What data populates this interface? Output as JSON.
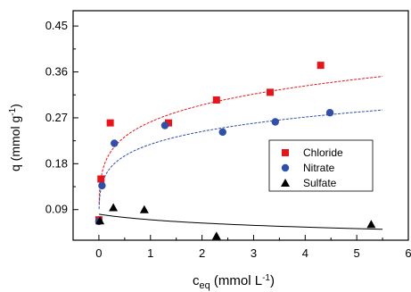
{
  "chart_data": {
    "type": "scatter",
    "title": "",
    "xlabel": {
      "main": "c",
      "sub": "eq",
      "rest_before": " (mmol L",
      "sup": "-1",
      "rest_after": ")"
    },
    "ylabel": {
      "main": "q (mmol g",
      "sup": "-1",
      "rest_after": ")"
    },
    "xlim": [
      -0.5,
      6
    ],
    "ylim": [
      0.03,
      0.48
    ],
    "xticks": [
      0,
      1,
      2,
      3,
      4,
      5,
      6
    ],
    "xtick_labels": [
      "0",
      "1",
      "2",
      "3",
      "4",
      "5",
      "6"
    ],
    "yticks": [
      0.09,
      0.18,
      0.27,
      0.36,
      0.45
    ],
    "ytick_labels": [
      "0.09",
      "0.18",
      "0.27",
      "0.36",
      "0.45"
    ],
    "grid": false,
    "legend_position": "right",
    "series": [
      {
        "name": "Chloride",
        "marker": "square",
        "color": "#e8141b",
        "fit_color": "#e8141b",
        "points": [
          [
            0.0,
            0.07
          ],
          [
            0.04,
            0.15
          ],
          [
            0.22,
            0.26
          ],
          [
            1.35,
            0.26
          ],
          [
            2.28,
            0.305
          ],
          [
            3.32,
            0.32
          ],
          [
            4.3,
            0.373
          ]
        ],
        "fit": {
          "kind": "freundlich",
          "k": 0.262,
          "n": 0.172
        }
      },
      {
        "name": "Nitrate",
        "marker": "circle",
        "color": "#2f4fa8",
        "fit_color": "#2f4fa8",
        "points": [
          [
            0.0,
            0.067
          ],
          [
            0.06,
            0.137
          ],
          [
            0.3,
            0.22
          ],
          [
            1.28,
            0.255
          ],
          [
            2.4,
            0.242
          ],
          [
            3.42,
            0.262
          ],
          [
            4.48,
            0.28
          ]
        ],
        "fit": {
          "kind": "freundlich",
          "k": 0.218,
          "n": 0.158
        }
      },
      {
        "name": "Sulfate",
        "marker": "triangle",
        "color": "#000000",
        "fit_color": "#000000",
        "points": [
          [
            0.02,
            0.068
          ],
          [
            0.28,
            0.094
          ],
          [
            0.88,
            0.09
          ],
          [
            2.28,
            0.038
          ],
          [
            5.28,
            0.061
          ]
        ],
        "fit": {
          "kind": "decay",
          "a": 0.081,
          "b": 0.035
        }
      }
    ]
  }
}
